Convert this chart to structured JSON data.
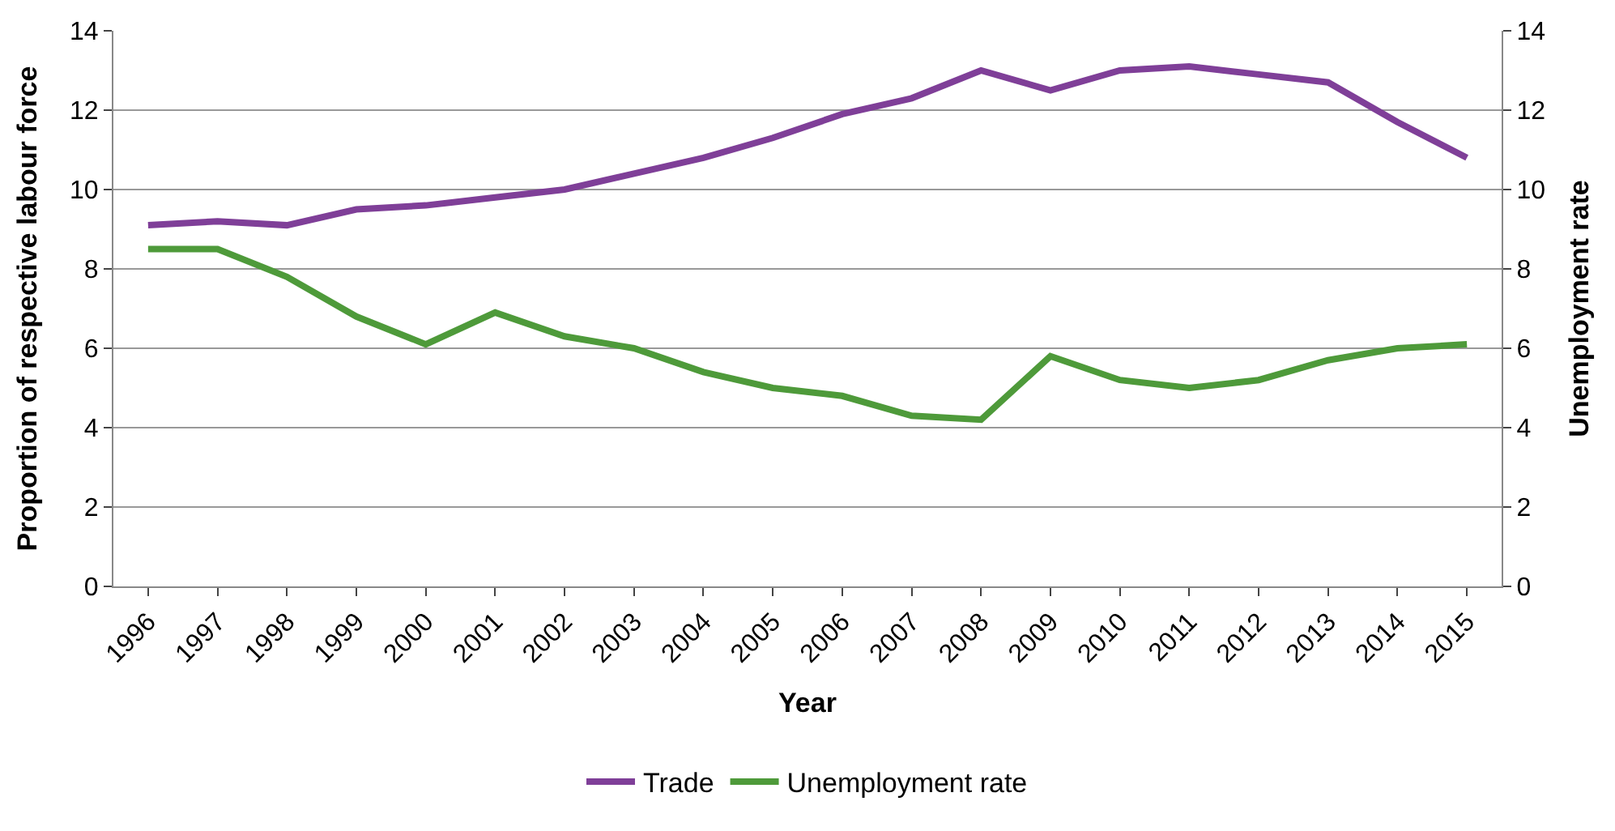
{
  "chart_data": {
    "type": "line",
    "xlabel": "Year",
    "ylabel": "Proportion of respective labour force",
    "y2label": "Unemployment rate",
    "categories": [
      "1996",
      "1997",
      "1998",
      "1999",
      "2000",
      "2001",
      "2002",
      "2003",
      "2004",
      "2005",
      "2006",
      "2007",
      "2008",
      "2009",
      "2010",
      "2011",
      "2012",
      "2013",
      "2014",
      "2015"
    ],
    "series": [
      {
        "name": "Trade",
        "color": "#7f3f98",
        "values": [
          9.1,
          9.2,
          9.1,
          9.5,
          9.6,
          9.8,
          10.0,
          10.4,
          10.8,
          11.3,
          11.9,
          12.3,
          13.0,
          12.5,
          13.0,
          13.1,
          12.9,
          12.7,
          11.7,
          10.8
        ]
      },
      {
        "name": "Unemployment rate",
        "color": "#4e9a3a",
        "axis": "y2",
        "values": [
          8.5,
          8.5,
          7.8,
          6.8,
          6.1,
          6.9,
          6.3,
          6.0,
          5.4,
          5.0,
          4.8,
          4.3,
          4.2,
          5.8,
          5.2,
          5.0,
          5.2,
          5.7,
          6.0,
          6.1
        ]
      }
    ],
    "ylim": [
      0,
      14
    ],
    "yticks": [
      0,
      2,
      4,
      6,
      8,
      10,
      12,
      14
    ],
    "y2lim": [
      0,
      14
    ],
    "y2ticks": [
      0,
      2,
      4,
      6,
      8,
      10,
      12,
      14
    ],
    "grid": "y",
    "legend": "bottom",
    "marker": "none",
    "line_style": "solid"
  }
}
